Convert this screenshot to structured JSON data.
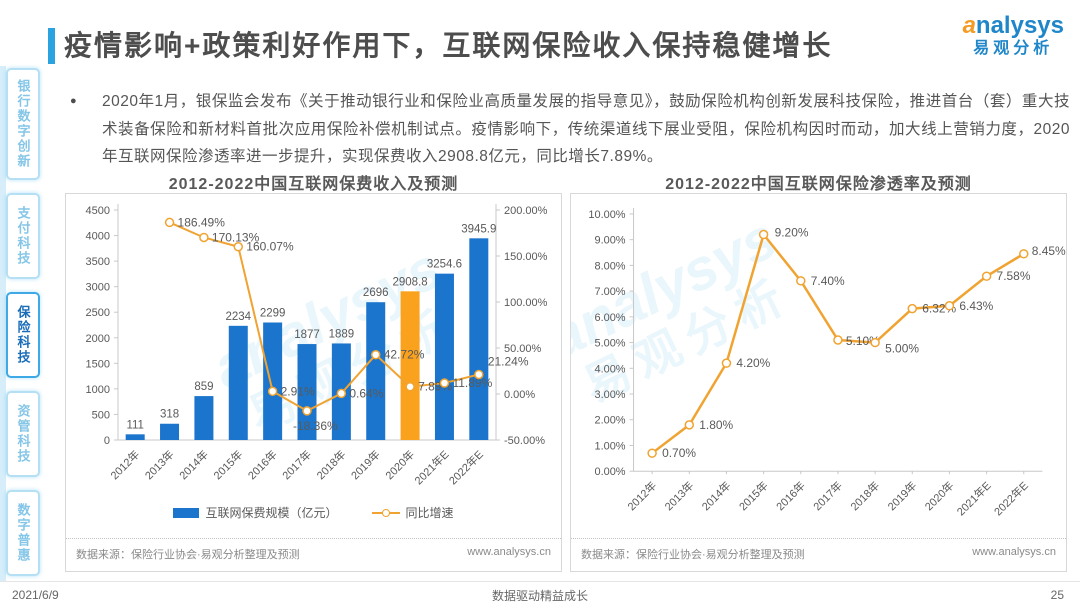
{
  "page": {
    "title": "疫情影响+政策利好作用下，互联网保险收入保持稳健增长",
    "logo": {
      "brand_a": "a",
      "brand_rest": "nalysys",
      "brand_cn": "易观分析"
    },
    "watermark_line1": "analysys",
    "watermark_line2": "易观分析",
    "bullet_text": "2020年1月，银保监会发布《关于推动银行业和保险业高质量发展的指导意见》，鼓励保险机构创新发展科技保险，推进首台（套）重大技术装备保险和新材料首批次应用保险补偿机制试点。疫情影响下，传统渠道线下展业受阻，保险机构因时而动，加大线上营销力度，2020年互联网保险渗透率进一步提升，实现保费收入2908.8亿元，同比增长7.89%。",
    "footer": {
      "date": "2021/6/9",
      "slogan": "数据驱动精益成长",
      "page": "25"
    },
    "colors": {
      "accent_blue": "#2ba3e1",
      "brand_blue": "#1f86c9",
      "brand_orange": "#f59a23"
    }
  },
  "sidebar": {
    "items": [
      {
        "label": "银行数字创新",
        "active": false
      },
      {
        "label": "支付科技",
        "active": false
      },
      {
        "label": "保险科技",
        "active": true
      },
      {
        "label": "资管科技",
        "active": false
      },
      {
        "label": "数字普惠",
        "active": false
      }
    ]
  },
  "chart_data": [
    {
      "type": "bar",
      "title": "2012-2022中国互联网保费收入及预测",
      "categories": [
        "2012年",
        "2013年",
        "2014年",
        "2015年",
        "2016年",
        "2017年",
        "2018年",
        "2019年",
        "2020年",
        "2021年E",
        "2022年E"
      ],
      "series": [
        {
          "name": "互联网保费规模（亿元）",
          "kind": "bar",
          "values": [
            111,
            318,
            859,
            2234,
            2299,
            1877,
            1889,
            2696,
            2908.8,
            3254.6,
            3945.9
          ],
          "labels": [
            "111",
            "318",
            "859",
            "2234",
            "2299",
            "1877",
            "1889",
            "2696",
            "2908.8",
            "3254.6",
            "3945.9"
          ]
        },
        {
          "name": "同比增速",
          "kind": "line",
          "values": [
            null,
            186.49,
            170.13,
            160.07,
            2.91,
            -18.36,
            0.64,
            42.72,
            7.89,
            11.89,
            21.24
          ],
          "labels": [
            "",
            "186.49%",
            "170.13%",
            "160.07%",
            "2.91%",
            "-18.36%",
            "0.64%",
            "42.72%",
            "7.89%",
            "11.89%",
            "21.24%"
          ]
        }
      ],
      "ylim_left": [
        0,
        4500
      ],
      "yticks_left": [
        "0",
        "500",
        "1000",
        "1500",
        "2000",
        "2500",
        "3000",
        "3500",
        "4000",
        "4500"
      ],
      "ylim_right": [
        -50,
        200
      ],
      "yticks_right": [
        "-50.00%",
        "0.00%",
        "50.00%",
        "100.00%",
        "150.00%",
        "200.00%"
      ],
      "highlight_index": 8,
      "colors": {
        "bar": "#1b75cc",
        "highlight": "#faa21d",
        "line": "#f0a330"
      },
      "legend_position": "bottom",
      "grid": false,
      "source": "数据来源：保险行业协会·易观分析整理及预测",
      "website": "www.analysys.cn"
    },
    {
      "type": "line",
      "title": "2012-2022中国互联网保险渗透率及预测",
      "categories": [
        "2012年",
        "2013年",
        "2014年",
        "2015年",
        "2016年",
        "2017年",
        "2018年",
        "2019年",
        "2020年",
        "2021年E",
        "2022年E"
      ],
      "values": [
        0.7,
        1.8,
        4.2,
        9.2,
        7.4,
        5.1,
        5.0,
        6.32,
        6.43,
        7.58,
        8.45
      ],
      "labels": [
        "0.70%",
        "1.80%",
        "4.20%",
        "9.20%",
        "7.40%",
        "5.10%",
        "5.00%",
        "6.32%",
        "6.43%",
        "7.58%",
        "8.45%"
      ],
      "ylim": [
        0,
        10
      ],
      "yticks": [
        "0.00%",
        "1.00%",
        "2.00%",
        "3.00%",
        "4.00%",
        "5.00%",
        "6.00%",
        "7.00%",
        "8.00%",
        "9.00%",
        "10.00%"
      ],
      "color": "#f0a330",
      "grid": false,
      "source": "数据来源：保险行业协会·易观分析整理及预测",
      "website": "www.analysys.cn"
    }
  ]
}
